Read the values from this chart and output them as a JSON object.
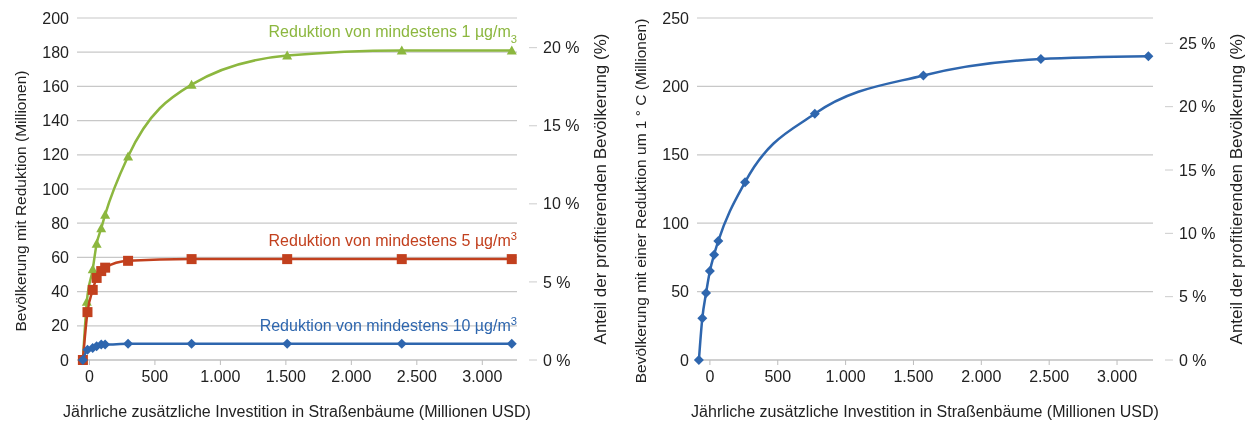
{
  "chart_data": [
    {
      "type": "line",
      "xlabel": "Jährliche zusätzliche Investition in Straßenbäume (Millionen USD)",
      "ylabel": "Bevölkerung mit Reduktion (Millionen)",
      "y2label": "Anteil der profitierenden Bevölkerung (%)",
      "xlim": [
        -95,
        3265
      ],
      "xticks": [
        {
          "value": 0,
          "label": "0"
        },
        500,
        {
          "value": 1000,
          "label": "1.000"
        },
        {
          "value": 1500,
          "label": "1.500"
        },
        {
          "value": 2000,
          "label": "2.000"
        },
        {
          "value": 2500,
          "label": "2.500"
        },
        {
          "value": 3000,
          "label": "3.000"
        }
      ],
      "ylim": [
        0,
        200
      ],
      "yticks": [
        {
          "value": 0,
          "label": "0"
        },
        20,
        40,
        60,
        80,
        100,
        120,
        140,
        160,
        180,
        200
      ],
      "y2lim": [
        0,
        21.9
      ],
      "y2ticks": [
        {
          "value": 0,
          "label": "0 %"
        },
        {
          "value": 5,
          "label": "5 %"
        },
        {
          "value": 10,
          "label": "10 %"
        },
        {
          "value": 15,
          "label": "15 %"
        },
        {
          "value": 20,
          "label": "20 %"
        }
      ],
      "grid": "y",
      "series": [
        {
          "name": "Reduktion von mindestens 1 µg/m$_{3}$",
          "color": "#8cb73f",
          "marker": "triangle",
          "x": [
            -50,
            -20,
            25,
            55,
            90,
            120,
            295,
            780,
            1510,
            2385,
            3225
          ],
          "values": [
            0,
            34,
            53,
            68,
            77,
            85,
            119,
            161,
            178,
            181,
            181
          ]
        },
        {
          "name": "Reduktion von mindestens 5 µg/m$^{3}$",
          "color": "#c2401e",
          "marker": "square",
          "x": [
            -50,
            -15,
            25,
            55,
            90,
            120,
            295,
            780,
            1510,
            2385,
            3225
          ],
          "values": [
            0,
            28,
            41,
            48,
            52,
            54,
            58,
            59,
            59,
            59,
            59
          ]
        },
        {
          "name": "Reduktion von mindestens 10 µg/m$^{3}$",
          "color": "#2e66ae",
          "marker": "diamond",
          "x": [
            -50,
            -15,
            25,
            55,
            90,
            120,
            295,
            780,
            1510,
            2385,
            3225
          ],
          "values": [
            0,
            6,
            7,
            8,
            9,
            9,
            9.5,
            9.5,
            9.5,
            9.5,
            9.5
          ]
        }
      ]
    },
    {
      "type": "line",
      "xlabel": "Jährliche zusätzliche Investition in Straßenbäume (Millionen USD)",
      "ylabel": "Bevölkerung mit einer Reduktion um 1 ° C (Millionen)",
      "y2label": "Anteil der profitierenden Bevölkerung (%)",
      "xlim": [
        -95,
        3265
      ],
      "xticks": [
        {
          "value": 0,
          "label": "0"
        },
        500,
        {
          "value": 1000,
          "label": "1.000"
        },
        {
          "value": 1500,
          "label": "1.500"
        },
        {
          "value": 2000,
          "label": "2.000"
        },
        {
          "value": 2500,
          "label": "2.500"
        },
        {
          "value": 3000,
          "label": "3.000"
        }
      ],
      "ylim": [
        0,
        250
      ],
      "yticks": [
        {
          "value": 0,
          "label": "0"
        },
        50,
        100,
        150,
        200,
        250
      ],
      "y2lim": [
        0,
        27
      ],
      "y2ticks": [
        {
          "value": 0,
          "label": "0 %"
        },
        {
          "value": 5,
          "label": "5 %"
        },
        {
          "value": 10,
          "label": "10 %"
        },
        {
          "value": 15,
          "label": "15 %"
        },
        {
          "value": 20,
          "label": "20 %"
        },
        {
          "value": 25,
          "label": "25 %"
        }
      ],
      "grid": "y",
      "series": [
        {
          "color": "#2e66ae",
          "marker": "diamond",
          "x": [
            -81,
            -56,
            -28,
            0,
            31,
            62,
            259,
            773,
            1573,
            2439,
            3231
          ],
          "values": [
            0,
            30.5,
            49,
            65,
            77,
            87,
            130,
            180,
            208,
            220,
            222
          ]
        }
      ]
    }
  ]
}
